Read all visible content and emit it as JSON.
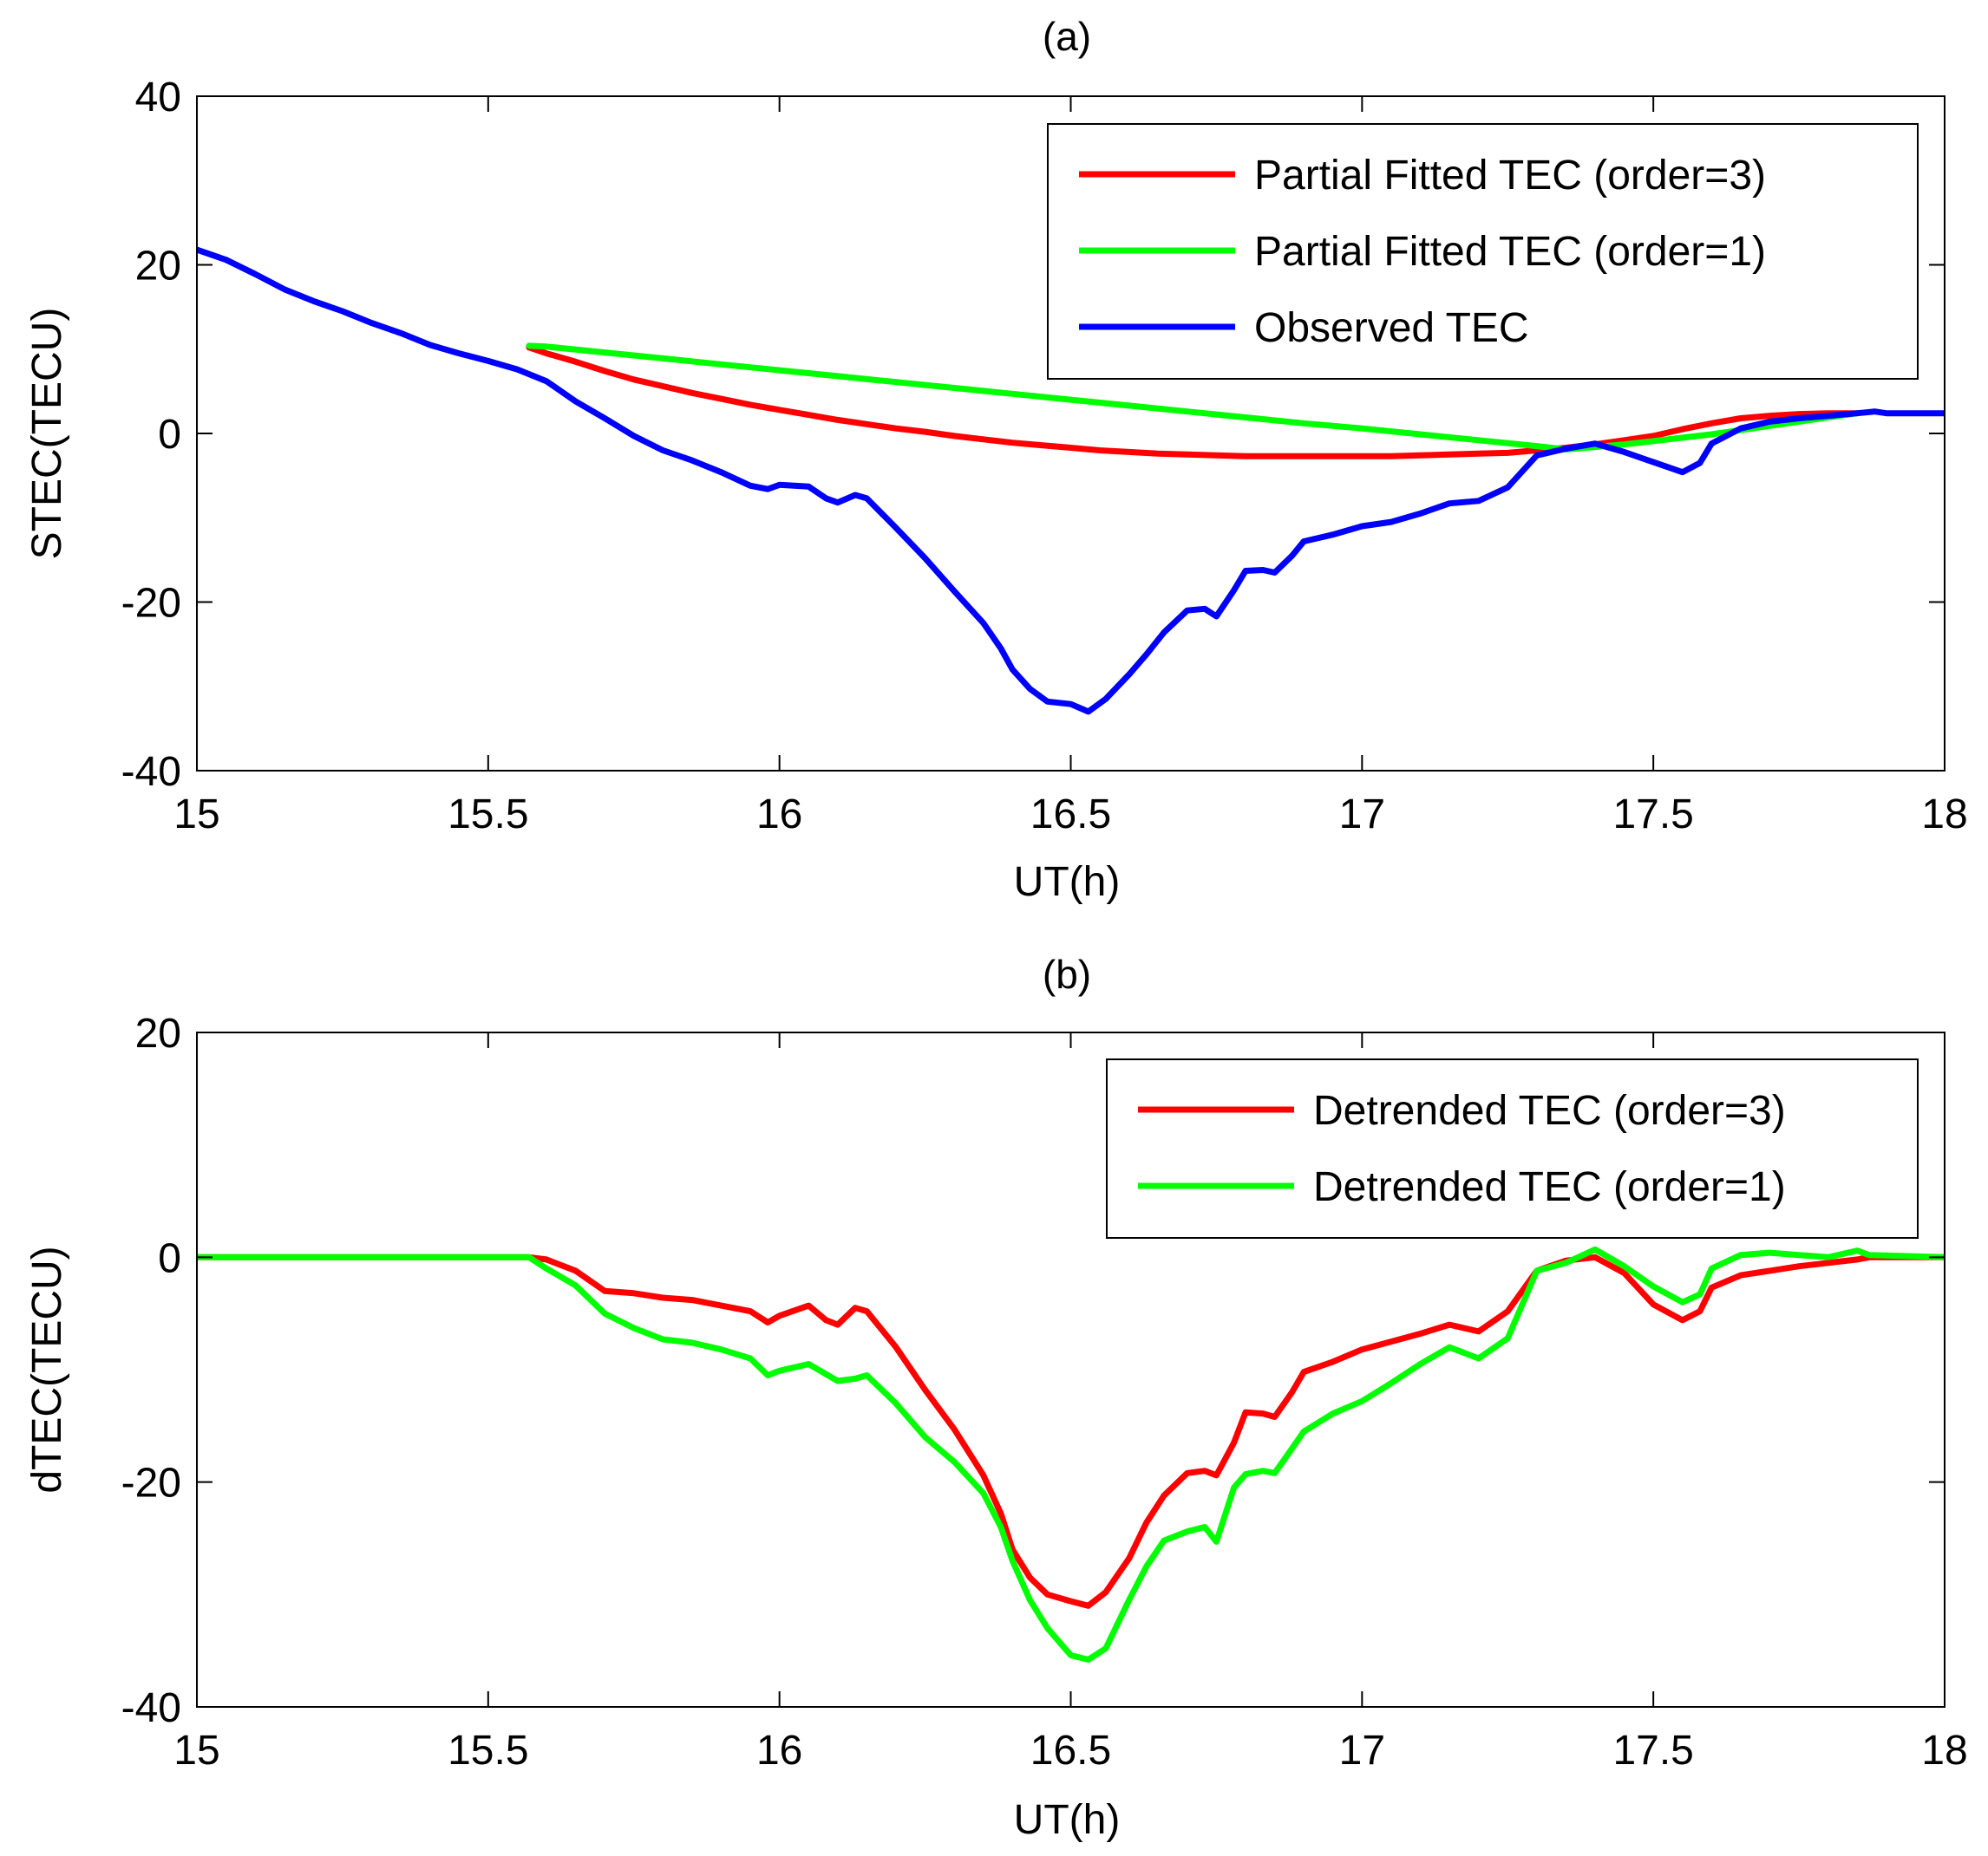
{
  "chart_data": [
    {
      "type": "line",
      "title": "(a)",
      "xlabel": "UT(h)",
      "ylabel": "STEC(TECU)",
      "xlim": [
        15,
        18
      ],
      "ylim": [
        -40,
        40
      ],
      "xticks": [
        15,
        15.5,
        16,
        16.5,
        17,
        17.5,
        18
      ],
      "xtick_labels": [
        "15",
        "15.5",
        "16",
        "16.5",
        "17",
        "17.5",
        "18"
      ],
      "yticks": [
        40,
        20,
        0,
        -20,
        -40
      ],
      "ytick_labels": [
        "40",
        "20",
        "0",
        "-20",
        "-40"
      ],
      "grid": false,
      "legend_position": "top-right",
      "series": [
        {
          "name": "Partial Fitted TEC (order=3)",
          "color": "#ff0000",
          "x": [
            15.57,
            15.6,
            15.65,
            15.7,
            15.75,
            15.8,
            15.85,
            15.9,
            15.95,
            16.0,
            16.05,
            16.1,
            16.15,
            16.2,
            16.25,
            16.3,
            16.35,
            16.4,
            16.45,
            16.5,
            16.55,
            16.6,
            16.65,
            16.7,
            16.75,
            16.8,
            16.85,
            16.9,
            16.95,
            17.0,
            17.05,
            17.1,
            17.15,
            17.2,
            17.25,
            17.3,
            17.35,
            17.4,
            17.45,
            17.5,
            17.55,
            17.6,
            17.65,
            17.7,
            17.75,
            17.8,
            17.85
          ],
          "y": [
            10.2,
            9.5,
            8.5,
            7.4,
            6.4,
            5.6,
            4.8,
            4.1,
            3.4,
            2.8,
            2.2,
            1.6,
            1.1,
            0.6,
            0.2,
            -0.3,
            -0.7,
            -1.1,
            -1.4,
            -1.7,
            -2.0,
            -2.2,
            -2.4,
            -2.5,
            -2.6,
            -2.7,
            -2.7,
            -2.7,
            -2.7,
            -2.7,
            -2.7,
            -2.6,
            -2.5,
            -2.4,
            -2.3,
            -2.0,
            -1.7,
            -1.3,
            -0.8,
            -0.3,
            0.5,
            1.2,
            1.8,
            2.1,
            2.3,
            2.4,
            2.4
          ]
        },
        {
          "name": "Partial Fitted TEC (order=1)",
          "color": "#00ff00",
          "x": [
            15.57,
            15.6,
            15.7,
            15.8,
            15.9,
            16.0,
            16.1,
            16.2,
            16.3,
            16.4,
            16.5,
            16.6,
            16.7,
            16.8,
            16.9,
            17.0,
            17.1,
            17.2,
            17.3,
            17.35,
            17.4,
            17.45,
            17.5,
            17.55,
            17.6,
            17.65,
            17.7,
            17.75,
            17.8,
            17.85
          ],
          "y": [
            10.4,
            10.3,
            9.6,
            8.9,
            8.2,
            7.5,
            6.8,
            6.1,
            5.4,
            4.7,
            4.0,
            3.3,
            2.6,
            1.9,
            1.2,
            0.6,
            -0.1,
            -0.8,
            -1.5,
            -1.9,
            -1.6,
            -1.3,
            -0.9,
            -0.5,
            -0.1,
            0.4,
            0.9,
            1.4,
            1.9,
            2.4
          ]
        },
        {
          "name": "Observed TEC",
          "color": "#0000ff",
          "x": [
            15.0,
            15.05,
            15.1,
            15.15,
            15.2,
            15.25,
            15.3,
            15.35,
            15.4,
            15.45,
            15.5,
            15.55,
            15.6,
            15.65,
            15.7,
            15.75,
            15.8,
            15.85,
            15.9,
            15.95,
            15.98,
            16.0,
            16.05,
            16.08,
            16.1,
            16.13,
            16.15,
            16.2,
            16.25,
            16.3,
            16.35,
            16.38,
            16.4,
            16.43,
            16.46,
            16.5,
            16.53,
            16.56,
            16.6,
            16.63,
            16.66,
            16.7,
            16.73,
            16.75,
            16.78,
            16.8,
            16.83,
            16.85,
            16.88,
            16.9,
            16.95,
            17.0,
            17.05,
            17.1,
            17.15,
            17.2,
            17.25,
            17.3,
            17.35,
            17.4,
            17.45,
            17.5,
            17.55,
            17.58,
            17.6,
            17.65,
            17.7,
            17.75,
            17.8,
            17.85,
            17.88,
            17.9,
            17.95,
            18.0
          ],
          "y": [
            21.8,
            20.6,
            18.9,
            17.1,
            15.7,
            14.5,
            13.1,
            11.9,
            10.5,
            9.5,
            8.6,
            7.6,
            6.2,
            3.8,
            1.8,
            -0.3,
            -2.0,
            -3.2,
            -4.6,
            -6.2,
            -6.6,
            -6.1,
            -6.3,
            -7.7,
            -8.2,
            -7.3,
            -7.7,
            -11.2,
            -14.8,
            -18.7,
            -22.5,
            -25.5,
            -28.0,
            -30.3,
            -31.8,
            -32.1,
            -33.0,
            -31.5,
            -28.6,
            -26.2,
            -23.6,
            -21.0,
            -20.8,
            -21.7,
            -18.6,
            -16.3,
            -16.2,
            -16.5,
            -14.5,
            -12.8,
            -12.0,
            -11.0,
            -10.5,
            -9.5,
            -8.3,
            -8.0,
            -6.4,
            -2.6,
            -1.8,
            -1.2,
            -2.2,
            -3.4,
            -4.6,
            -3.5,
            -1.2,
            0.6,
            1.4,
            1.8,
            2.1,
            2.4,
            2.6,
            2.4,
            2.4,
            2.4
          ]
        }
      ]
    },
    {
      "type": "line",
      "title": "(b)",
      "xlabel": "UT(h)",
      "ylabel": "dTEC(TECU)",
      "xlim": [
        15,
        18
      ],
      "ylim": [
        -40,
        20
      ],
      "xticks": [
        15,
        15.5,
        16,
        16.5,
        17,
        17.5,
        18
      ],
      "xtick_labels": [
        "15",
        "15.5",
        "16",
        "16.5",
        "17",
        "17.5",
        "18"
      ],
      "yticks": [
        20,
        0,
        -20,
        -40
      ],
      "ytick_labels": [
        "20",
        "0",
        "-20",
        "-40"
      ],
      "grid": false,
      "legend_position": "top-right",
      "series": [
        {
          "name": "Detrended TEC (order=3)",
          "color": "#ff0000",
          "x": [
            15.0,
            15.57,
            15.6,
            15.65,
            15.7,
            15.75,
            15.8,
            15.85,
            15.9,
            15.95,
            15.98,
            16.0,
            16.05,
            16.08,
            16.1,
            16.13,
            16.15,
            16.2,
            16.25,
            16.3,
            16.35,
            16.38,
            16.4,
            16.43,
            16.46,
            16.5,
            16.53,
            16.56,
            16.6,
            16.63,
            16.66,
            16.7,
            16.73,
            16.75,
            16.78,
            16.8,
            16.83,
            16.85,
            16.88,
            16.9,
            16.95,
            17.0,
            17.05,
            17.1,
            17.15,
            17.2,
            17.25,
            17.3,
            17.35,
            17.4,
            17.45,
            17.5,
            17.55,
            17.58,
            17.6,
            17.65,
            17.7,
            17.75,
            17.8,
            17.85,
            17.87,
            18.0
          ],
          "y": [
            0,
            0,
            -0.2,
            -1.2,
            -3.0,
            -3.2,
            -3.6,
            -3.8,
            -4.3,
            -4.8,
            -5.8,
            -5.2,
            -4.3,
            -5.6,
            -6.0,
            -4.5,
            -4.8,
            -8.0,
            -11.8,
            -15.3,
            -19.4,
            -22.8,
            -26.0,
            -28.5,
            -30.0,
            -30.6,
            -31.0,
            -29.8,
            -26.8,
            -23.6,
            -21.2,
            -19.2,
            -19.0,
            -19.4,
            -16.5,
            -13.8,
            -13.9,
            -14.2,
            -12.0,
            -10.2,
            -9.3,
            -8.2,
            -7.5,
            -6.8,
            -6.0,
            -6.6,
            -4.8,
            -1.2,
            -0.3,
            0.0,
            -1.4,
            -4.2,
            -5.6,
            -4.8,
            -2.7,
            -1.6,
            -1.2,
            -0.8,
            -0.5,
            -0.2,
            0,
            0
          ]
        },
        {
          "name": "Detrended TEC (order=1)",
          "color": "#00ff00",
          "x": [
            15.0,
            15.57,
            15.6,
            15.65,
            15.7,
            15.75,
            15.8,
            15.85,
            15.9,
            15.95,
            15.98,
            16.0,
            16.05,
            16.08,
            16.1,
            16.13,
            16.15,
            16.2,
            16.25,
            16.3,
            16.35,
            16.38,
            16.4,
            16.43,
            16.46,
            16.5,
            16.53,
            16.56,
            16.6,
            16.63,
            16.66,
            16.7,
            16.73,
            16.75,
            16.78,
            16.8,
            16.83,
            16.85,
            16.88,
            16.9,
            16.95,
            17.0,
            17.05,
            17.1,
            17.15,
            17.2,
            17.25,
            17.3,
            17.35,
            17.4,
            17.45,
            17.5,
            17.55,
            17.58,
            17.6,
            17.65,
            17.7,
            17.75,
            17.8,
            17.85,
            17.87,
            18.0
          ],
          "y": [
            0,
            0,
            -1.0,
            -2.5,
            -5.0,
            -6.3,
            -7.3,
            -7.6,
            -8.2,
            -9.0,
            -10.5,
            -10.1,
            -9.5,
            -10.4,
            -11.0,
            -10.8,
            -10.5,
            -13.0,
            -16.0,
            -18.2,
            -21.0,
            -24.0,
            -27.0,
            -30.5,
            -33.0,
            -35.4,
            -35.8,
            -34.8,
            -30.5,
            -27.5,
            -25.2,
            -24.4,
            -24.0,
            -25.3,
            -20.5,
            -19.3,
            -19.0,
            -19.2,
            -17.0,
            -15.5,
            -13.9,
            -12.8,
            -11.2,
            -9.5,
            -8.0,
            -9.0,
            -7.2,
            -1.2,
            -0.5,
            0.7,
            -0.8,
            -2.6,
            -4.0,
            -3.3,
            -1.0,
            0.2,
            0.4,
            0.2,
            0.0,
            0.6,
            0.2,
            0
          ]
        }
      ]
    }
  ]
}
